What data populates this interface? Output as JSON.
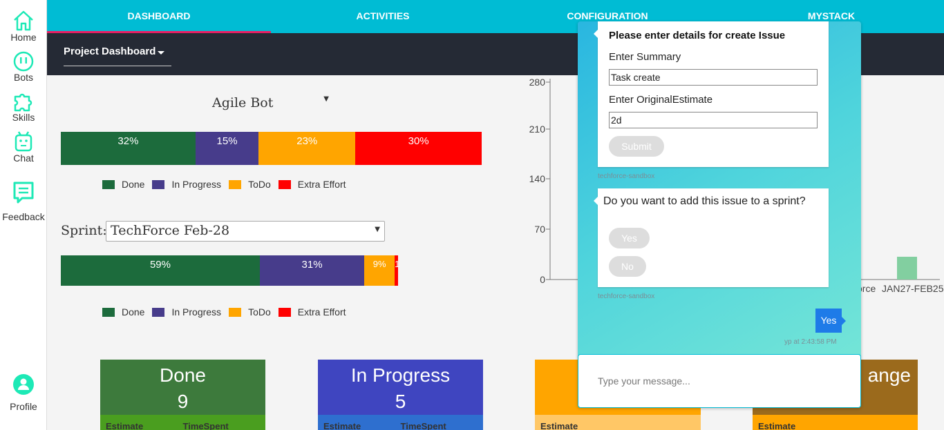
{
  "sidebar": {
    "items": [
      {
        "label": "Home",
        "icon": "home-icon"
      },
      {
        "label": "Bots",
        "icon": "bot-face-icon"
      },
      {
        "label": "Skills",
        "icon": "puzzle-icon"
      },
      {
        "label": "Chat",
        "icon": "robot-icon"
      },
      {
        "label": "Feedback",
        "icon": "feedback-icon"
      }
    ],
    "profile": {
      "label": "Profile",
      "icon": "profile-icon"
    },
    "accent": "#1de9b6"
  },
  "nav": {
    "tabs": [
      "DASHBOARD",
      "ACTIVITIES",
      "CONFIGURATION",
      "MYSTACK"
    ],
    "active": "DASHBOARD",
    "project_select": "Project Dashboard"
  },
  "dashboard": {
    "bot_select": "Agile Bot",
    "overall_bar": [
      {
        "label": "32%",
        "value": 32,
        "color": "#1c6b3c",
        "status": "Done"
      },
      {
        "label": "15%",
        "value": 15,
        "color": "#473c8b",
        "status": "In Progress"
      },
      {
        "label": "23%",
        "value": 23,
        "color": "#ffa500",
        "status": "ToDo"
      },
      {
        "label": "30%",
        "value": 30,
        "color": "#ff0000",
        "status": "Extra Effort"
      }
    ],
    "legend": [
      "Done",
      "In Progress",
      "ToDo",
      "Extra Effort"
    ],
    "sprint_label": "Sprint:",
    "sprint_select": "TechForce Feb-28",
    "sprint_bar": [
      {
        "label": "59%",
        "value": 59,
        "color": "#1c6b3c",
        "status": "Done"
      },
      {
        "label": "31%",
        "value": 31,
        "color": "#473c8b",
        "status": "In Progress"
      },
      {
        "label": "9%",
        "value": 9,
        "color": "#ffa500",
        "status": "ToDo"
      },
      {
        "label": "1",
        "value": 1,
        "color": "#ff0000",
        "status": "Extra Effort"
      }
    ],
    "cards": [
      {
        "title": "Done",
        "count": "9",
        "color": "#3d7a3c",
        "foot_color": "#4a9e1f",
        "foot": [
          "Estimate",
          "TimeSpent"
        ]
      },
      {
        "title": "In Progress",
        "count": "5",
        "color": "#3f45c0",
        "foot_color": "#2e6fcf",
        "foot": [
          "Estimate",
          "TimeSpent"
        ]
      },
      {
        "title": "",
        "count": "",
        "color": "#ffa500",
        "foot_color": "#ffc766",
        "foot": [
          "Estimate",
          ""
        ]
      },
      {
        "title": "ange",
        "count": "",
        "color": "#9b6a1c",
        "foot_color": "#ffa500",
        "foot": [
          "Estimate",
          ""
        ]
      }
    ]
  },
  "chart_data": {
    "type": "bar",
    "yticks": [
      "280",
      "210",
      "140",
      "70",
      "0"
    ],
    "ylim": [
      0,
      280
    ],
    "xlabels": [
      "orce",
      "JAN27-FEB25"
    ],
    "series": [
      {
        "values": [
          33,
          33
        ]
      }
    ],
    "bar_color": "#82cfa0"
  },
  "chat": {
    "form_title": "Please enter details for create Issue",
    "summary_label": "Enter Summary",
    "summary_value": "Task create",
    "estimate_label": "Enter OriginalEstimate",
    "estimate_value": "2d",
    "submit_label": "Submit",
    "source1": "techforce-sandbox",
    "question": "Do you want to add this issue to a sprint?",
    "yes_label": "Yes",
    "no_label": "No",
    "source2": "techforce-sandbox",
    "user_reply": "Yes",
    "user_meta": "yp at 2:43:58 PM",
    "input_placeholder": "Type your message..."
  }
}
